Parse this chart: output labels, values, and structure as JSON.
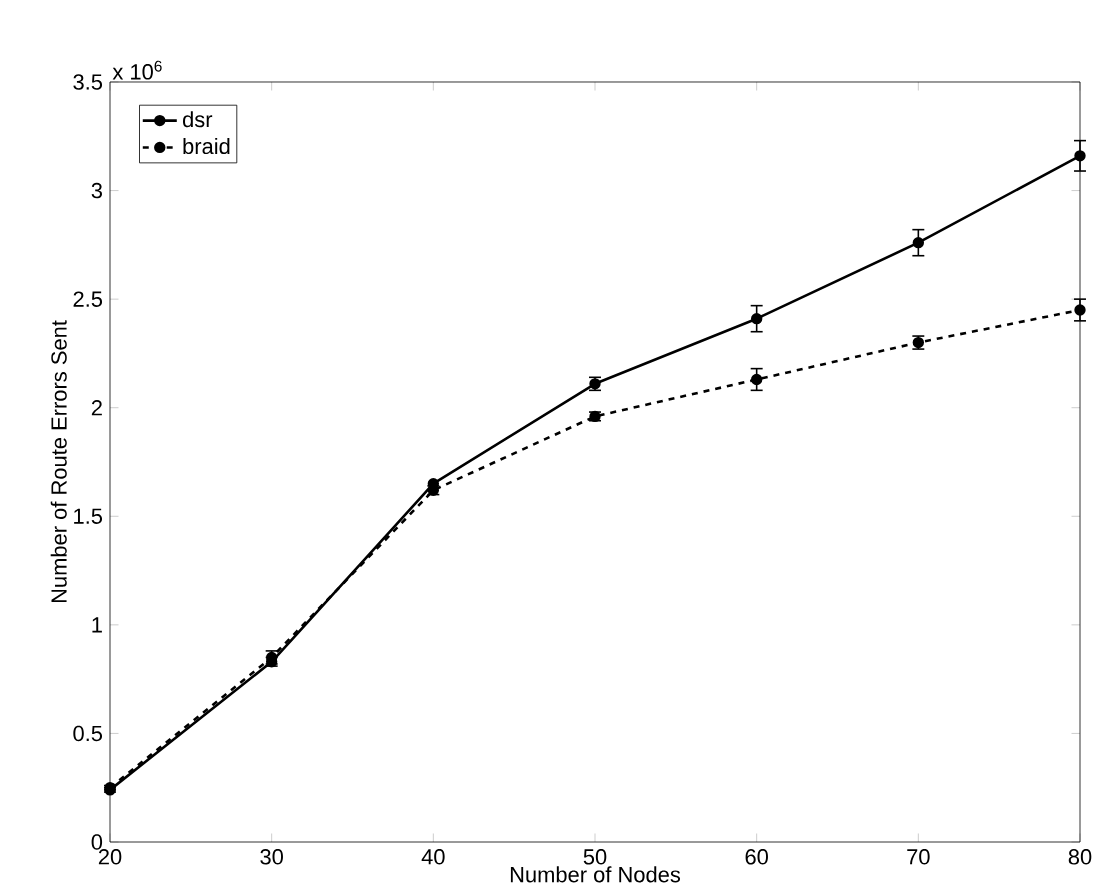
{
  "chart_data": {
    "type": "line",
    "xlabel": "Number of Nodes",
    "ylabel": "Number of Route Errors Sent",
    "annotations": [
      "x 10$^{6}$"
    ],
    "x": [
      20,
      30,
      40,
      50,
      60,
      70,
      80
    ],
    "series": [
      {
        "name": "dsr",
        "color": "#000000",
        "line_style": "solid",
        "values": [
          0.24,
          0.83,
          1.65,
          2.11,
          2.41,
          2.76,
          3.16
        ],
        "errors": [
          0.01,
          0.02,
          null,
          0.03,
          0.06,
          0.06,
          0.07
        ]
      },
      {
        "name": "braid",
        "color": "#000000",
        "line_style": "dashed",
        "values": [
          0.25,
          0.85,
          1.62,
          1.96,
          2.13,
          2.3,
          2.45
        ],
        "errors": [
          0.01,
          0.03,
          0.02,
          0.02,
          0.05,
          0.03,
          0.05
        ]
      }
    ],
    "xlim": [
      20,
      80
    ],
    "xticks": [
      20,
      30,
      40,
      50,
      60,
      70,
      80
    ],
    "ylim": [
      0,
      3.5
    ],
    "yticks": [
      0,
      0.5,
      1,
      1.5,
      2,
      2.5,
      3,
      3.5
    ],
    "marker": "circle",
    "legend": "top left",
    "grid": false
  }
}
